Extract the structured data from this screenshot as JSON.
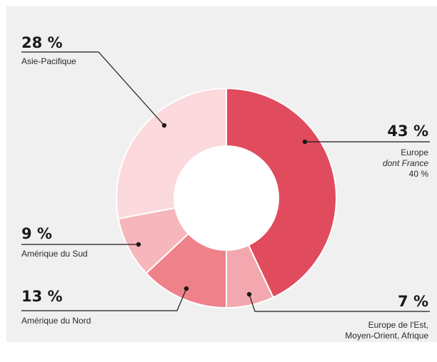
{
  "chart_data": {
    "type": "pie",
    "donut": true,
    "slices": [
      {
        "pct_label": "43 %",
        "value": 43,
        "label": "Europe",
        "sublabel_italic": "dont France",
        "sublabel_value": "40 %",
        "color": "#e04b5e"
      },
      {
        "pct_label": "7 %",
        "value": 7,
        "label_lines": [
          "Europe de l'Est,",
          "Moyen-Orient, Afrique"
        ],
        "color": "#f3a7ae"
      },
      {
        "pct_label": "13 %",
        "value": 13,
        "label": "Amérique du Nord",
        "color": "#ee8189"
      },
      {
        "pct_label": "9 %",
        "value": 9,
        "label": "Amérique du Sud",
        "color": "#f6b6bb"
      },
      {
        "pct_label": "28 %",
        "value": 28,
        "label": "Asie-Pacifique",
        "color": "#fbd9dc"
      }
    ]
  },
  "colors": {
    "panel_background": "#f0f0f0",
    "center_hole": "#ffffff",
    "leader_line": "#1a1a1a"
  }
}
